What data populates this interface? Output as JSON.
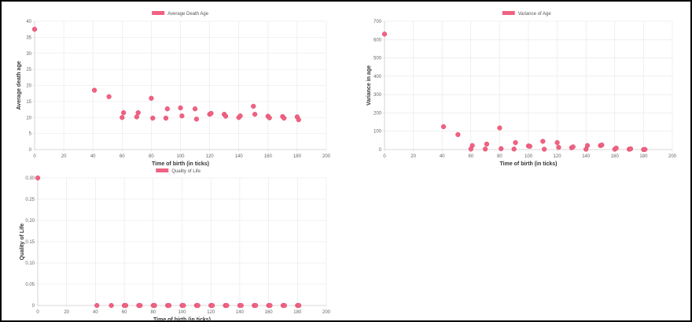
{
  "chart_data": [
    {
      "id": "average-death-age-chart",
      "type": "scatter",
      "legend": "Average Death Age",
      "legend_position": "top",
      "xlabel": "Time of birth (in ticks)",
      "ylabel": "Average death age",
      "xlim": [
        0,
        200
      ],
      "ylim": [
        0,
        40
      ],
      "x_ticks": [
        "0",
        "20",
        "40",
        "60",
        "80",
        "100",
        "120",
        "140",
        "160",
        "180",
        "200"
      ],
      "y_ticks": [
        "0",
        "5",
        "10",
        "15",
        "20",
        "25",
        "30",
        "35",
        "40"
      ],
      "grid": true,
      "color": "#f06282",
      "points": [
        {
          "x": 0,
          "y": 37.5
        },
        {
          "x": 41,
          "y": 18.5
        },
        {
          "x": 51,
          "y": 16.5
        },
        {
          "x": 60,
          "y": 10
        },
        {
          "x": 61,
          "y": 11.5
        },
        {
          "x": 70,
          "y": 10.2
        },
        {
          "x": 71,
          "y": 11.5
        },
        {
          "x": 80,
          "y": 16
        },
        {
          "x": 81,
          "y": 9.8
        },
        {
          "x": 90,
          "y": 9.8
        },
        {
          "x": 91,
          "y": 12.7
        },
        {
          "x": 100,
          "y": 13
        },
        {
          "x": 101,
          "y": 10.5
        },
        {
          "x": 110,
          "y": 12.7
        },
        {
          "x": 111,
          "y": 9.5
        },
        {
          "x": 120,
          "y": 11
        },
        {
          "x": 121,
          "y": 11.3
        },
        {
          "x": 130,
          "y": 11
        },
        {
          "x": 131,
          "y": 10.4
        },
        {
          "x": 140,
          "y": 10
        },
        {
          "x": 141,
          "y": 10.5
        },
        {
          "x": 150,
          "y": 13.5
        },
        {
          "x": 151,
          "y": 11
        },
        {
          "x": 160,
          "y": 10.4
        },
        {
          "x": 161,
          "y": 9.9
        },
        {
          "x": 170,
          "y": 10.3
        },
        {
          "x": 171,
          "y": 9.8
        },
        {
          "x": 180,
          "y": 10.2
        },
        {
          "x": 181,
          "y": 9.3
        }
      ]
    },
    {
      "id": "variance-of-age-chart",
      "type": "scatter",
      "legend": "Variance of Age",
      "legend_position": "top",
      "xlabel": "Time of birth (in ticks)",
      "ylabel": "Variance in age",
      "xlim": [
        0,
        200
      ],
      "ylim": [
        0,
        700
      ],
      "x_ticks": [
        "0",
        "20",
        "40",
        "60",
        "80",
        "100",
        "120",
        "140",
        "160",
        "180",
        "200"
      ],
      "y_ticks": [
        "0",
        "100",
        "200",
        "300",
        "400",
        "500",
        "600",
        "700"
      ],
      "grid": true,
      "color": "#f06282",
      "points": [
        {
          "x": 0,
          "y": 630
        },
        {
          "x": 41,
          "y": 125
        },
        {
          "x": 51,
          "y": 82
        },
        {
          "x": 60,
          "y": 3
        },
        {
          "x": 61,
          "y": 22
        },
        {
          "x": 70,
          "y": 3
        },
        {
          "x": 71,
          "y": 30
        },
        {
          "x": 80,
          "y": 118
        },
        {
          "x": 81,
          "y": 5
        },
        {
          "x": 90,
          "y": 3
        },
        {
          "x": 91,
          "y": 38
        },
        {
          "x": 100,
          "y": 20
        },
        {
          "x": 101,
          "y": 18
        },
        {
          "x": 110,
          "y": 45
        },
        {
          "x": 111,
          "y": 2
        },
        {
          "x": 120,
          "y": 38
        },
        {
          "x": 121,
          "y": 12
        },
        {
          "x": 130,
          "y": 10
        },
        {
          "x": 131,
          "y": 15
        },
        {
          "x": 140,
          "y": 2
        },
        {
          "x": 141,
          "y": 22
        },
        {
          "x": 150,
          "y": 22
        },
        {
          "x": 151,
          "y": 25
        },
        {
          "x": 160,
          "y": 2
        },
        {
          "x": 161,
          "y": 8
        },
        {
          "x": 170,
          "y": 2
        },
        {
          "x": 171,
          "y": 4
        },
        {
          "x": 180,
          "y": 0
        },
        {
          "x": 181,
          "y": 1
        }
      ]
    },
    {
      "id": "quality-of-life-chart",
      "type": "scatter",
      "legend": "Quality of Life",
      "legend_position": "top",
      "xlabel": "Time of birth (in ticks)",
      "ylabel": "Quality of Life",
      "xlim": [
        0,
        200
      ],
      "ylim": [
        0,
        0.3
      ],
      "x_ticks": [
        "0",
        "20",
        "40",
        "60",
        "80",
        "100",
        "120",
        "140",
        "160",
        "180",
        "200"
      ],
      "y_ticks": [
        "0",
        "0.05",
        "0.10",
        "0.15",
        "0.20",
        "0.25",
        "0.30"
      ],
      "grid": true,
      "color": "#f06282",
      "points": [
        {
          "x": 0,
          "y": 0.3
        },
        {
          "x": 41,
          "y": 0
        },
        {
          "x": 51,
          "y": 0
        },
        {
          "x": 60,
          "y": 0
        },
        {
          "x": 61,
          "y": 0
        },
        {
          "x": 70,
          "y": 0
        },
        {
          "x": 71,
          "y": 0
        },
        {
          "x": 80,
          "y": 0
        },
        {
          "x": 81,
          "y": 0
        },
        {
          "x": 90,
          "y": 0
        },
        {
          "x": 91,
          "y": 0
        },
        {
          "x": 100,
          "y": 0
        },
        {
          "x": 101,
          "y": 0
        },
        {
          "x": 110,
          "y": 0
        },
        {
          "x": 111,
          "y": 0
        },
        {
          "x": 120,
          "y": 0
        },
        {
          "x": 121,
          "y": 0
        },
        {
          "x": 130,
          "y": 0
        },
        {
          "x": 131,
          "y": 0
        },
        {
          "x": 140,
          "y": 0
        },
        {
          "x": 141,
          "y": 0
        },
        {
          "x": 150,
          "y": 0
        },
        {
          "x": 151,
          "y": 0
        },
        {
          "x": 160,
          "y": 0
        },
        {
          "x": 161,
          "y": 0
        },
        {
          "x": 170,
          "y": 0
        },
        {
          "x": 171,
          "y": 0
        },
        {
          "x": 180,
          "y": 0
        },
        {
          "x": 181,
          "y": 0
        }
      ]
    }
  ]
}
